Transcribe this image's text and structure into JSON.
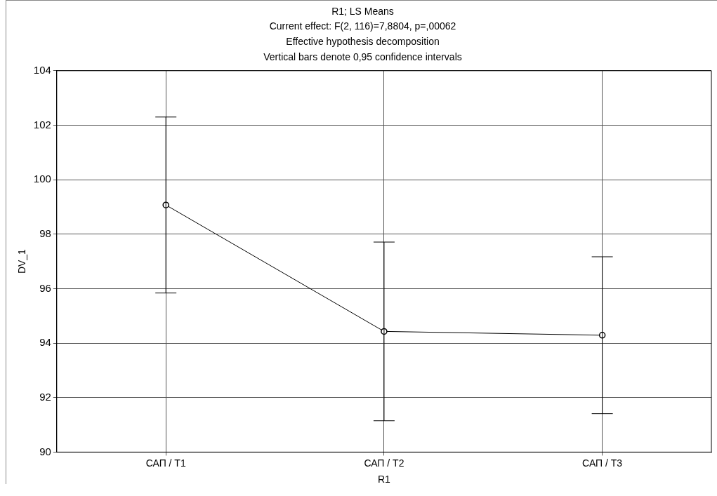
{
  "chart_data": {
    "type": "line",
    "title": "R1; LS Means",
    "subtitle": "Current effect: F(2, 116)=7,8804, p=,00062",
    "annotations": [
      "Effective hypothesis decomposition",
      "Vertical bars denote 0,95 confidence intervals"
    ],
    "xlabel": "R1",
    "ylabel": "DV_1",
    "categories": [
      "САП / Т1",
      "САП / Т2",
      "САП / Т3"
    ],
    "series": [
      {
        "color": "#000000",
        "values": [
          99.07,
          94.43,
          94.29
        ],
        "errors": [
          3.23,
          3.28,
          2.88
        ]
      }
    ],
    "ylim": [
      90,
      104
    ],
    "yticks": [
      90,
      92,
      94,
      96,
      98,
      100,
      102,
      104
    ],
    "grid": true,
    "legend": false,
    "marker": "circle",
    "line_style": "solid"
  }
}
